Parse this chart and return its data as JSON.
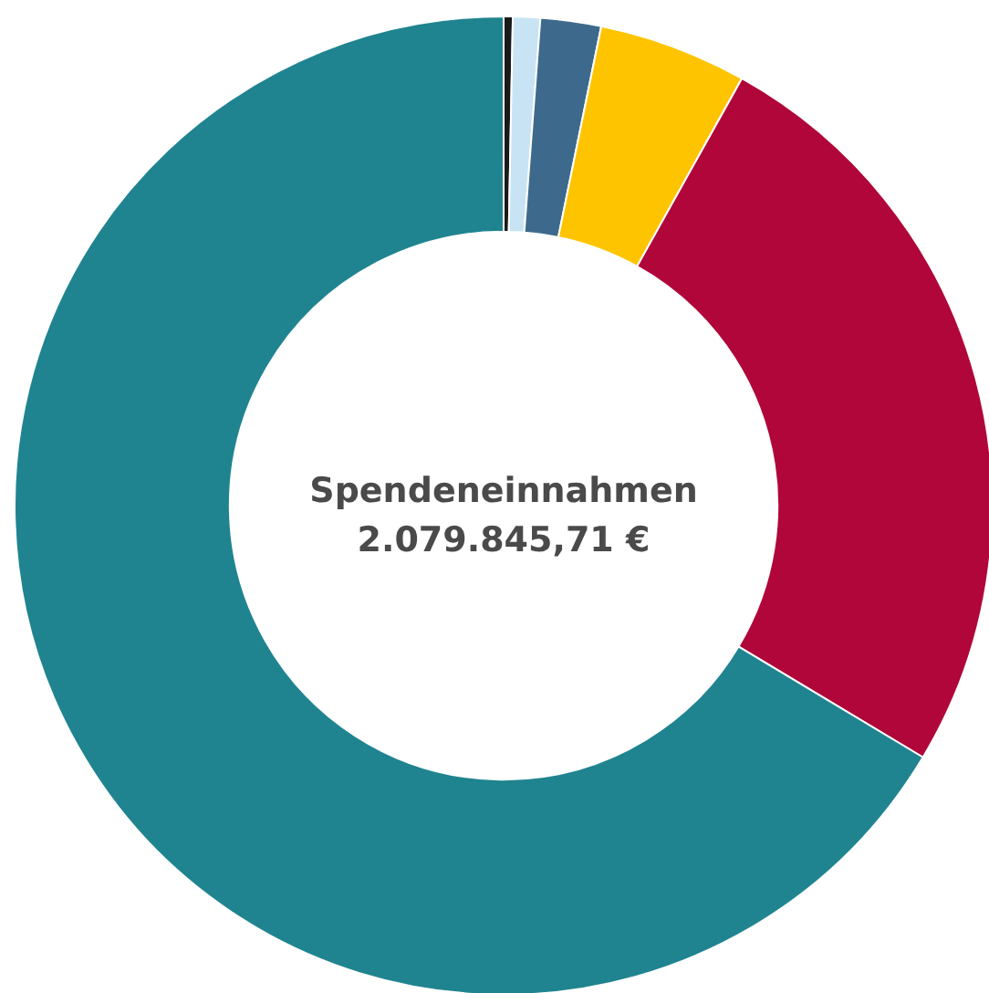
{
  "chart_data": {
    "type": "donut",
    "title": "Spendeneinnahmen",
    "subtitle": "2.079.845,71 €",
    "categories": [
      null,
      null,
      null,
      null,
      null,
      null
    ],
    "values": [
      0.3,
      0.9,
      2.0,
      4.9,
      25.5,
      66.4
    ],
    "colors": [
      "#1a1a1a",
      "#c8e4f4",
      "#3d6a8c",
      "#ffc400",
      "#b0063a",
      "#1f8490"
    ]
  }
}
